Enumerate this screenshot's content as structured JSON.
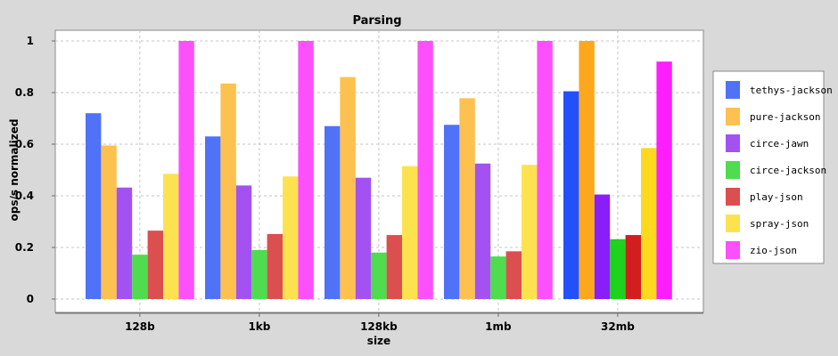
{
  "chart_data": {
    "type": "bar",
    "title": "Parsing",
    "xlabel": "size",
    "ylabel": "ops/s normalized",
    "categories": [
      "128b",
      "1kb",
      "128kb",
      "1mb",
      "32mb"
    ],
    "ylim": [
      0,
      1.0
    ],
    "yticks": [
      0,
      0.2,
      0.4,
      0.6,
      0.8,
      1
    ],
    "ytick_labels": [
      "0",
      "0.2",
      "0.4",
      "0.6",
      "0.8",
      "1"
    ],
    "grid": true,
    "legend_position": "right",
    "series": [
      {
        "name": "tethys-jackson",
        "color": "#4f72f7",
        "values": [
          0.72,
          0.63,
          0.67,
          0.675,
          0.805
        ]
      },
      {
        "name": "pure-jackson",
        "color": "#fdc150",
        "values": [
          0.595,
          0.835,
          0.86,
          0.778,
          1.0
        ]
      },
      {
        "name": "circe-jawn",
        "color": "#a451f2",
        "values": [
          0.432,
          0.44,
          0.47,
          0.525,
          0.405
        ]
      },
      {
        "name": "circe-jackson",
        "color": "#4fdc4f",
        "values": [
          0.172,
          0.19,
          0.18,
          0.165,
          0.232
        ]
      },
      {
        "name": "play-json",
        "color": "#dc4f4f",
        "values": [
          0.265,
          0.252,
          0.248,
          0.185,
          0.248
        ]
      },
      {
        "name": "spray-json",
        "color": "#fde250",
        "values": [
          0.485,
          0.475,
          0.515,
          0.52,
          0.585
        ]
      },
      {
        "name": "zio-json",
        "color": "#fd50fd",
        "values": [
          1.0,
          1.0,
          1.0,
          1.0,
          0.92
        ]
      }
    ],
    "highlighted_category": "32mb",
    "highlight_colors": [
      "#2450fa",
      "#fda71d",
      "#8a1ef8",
      "#1ed21e",
      "#d21e1e",
      "#fdd91d",
      "#fd1dfd"
    ]
  }
}
